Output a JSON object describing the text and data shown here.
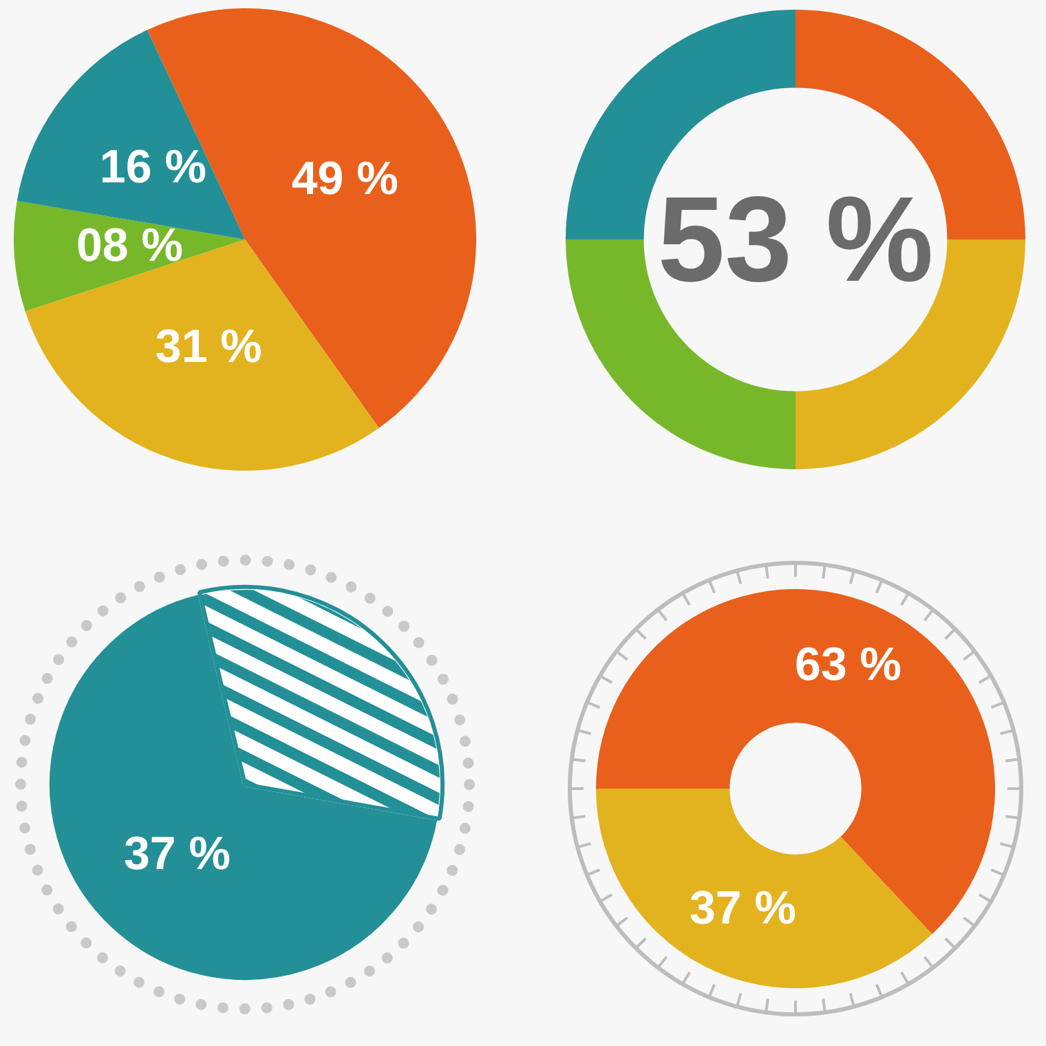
{
  "chart_data": [
    {
      "type": "pie",
      "categories": [
        null,
        null,
        null,
        null
      ],
      "values": [
        49,
        31,
        8,
        16
      ],
      "colors": [
        "#e8601c",
        "#e3b21f",
        "#76b82a",
        "#238f96"
      ],
      "value_labels": [
        "49 %",
        "31 %",
        "08 %",
        "16 %"
      ],
      "legend": false
    },
    {
      "type": "donut",
      "categories": [
        null,
        null,
        null,
        null
      ],
      "values": [
        25,
        25,
        25,
        25
      ],
      "colors": [
        "#e8601c",
        "#e3b21f",
        "#76b82a",
        "#238f96"
      ],
      "annotations": [
        "53 %"
      ],
      "legend": false
    },
    {
      "type": "pie",
      "categories": [
        null,
        null
      ],
      "values": [
        37,
        17
      ],
      "colors": [
        "#238f96",
        "#ffffff"
      ],
      "value_labels": [
        "37 %",
        null
      ],
      "legend": false
    },
    {
      "type": "donut",
      "categories": [
        null,
        null
      ],
      "values": [
        63,
        37
      ],
      "colors": [
        "#e8601c",
        "#e3b21f"
      ],
      "value_labels": [
        "63 %",
        "37 %"
      ],
      "legend": false
    }
  ]
}
